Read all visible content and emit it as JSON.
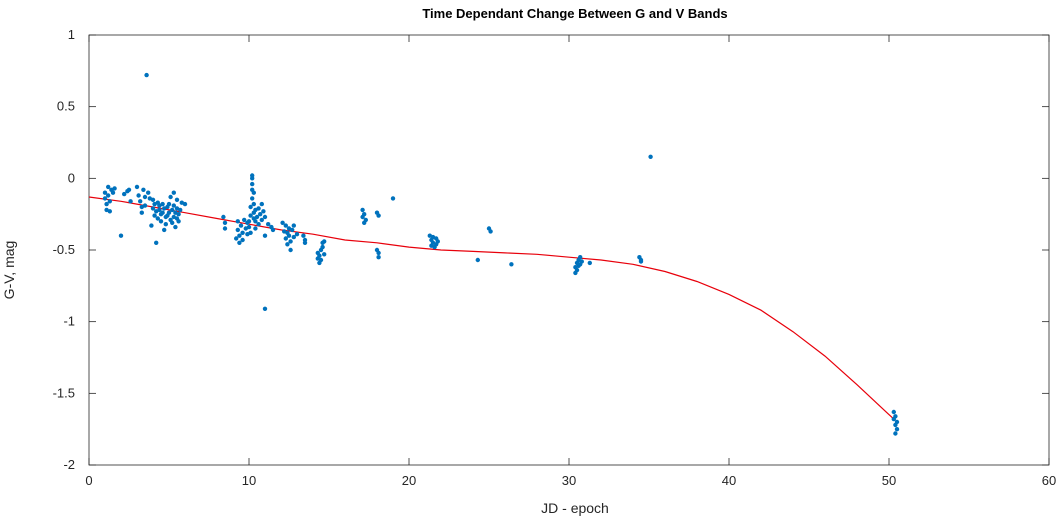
{
  "chart_data": {
    "type": "scatter",
    "title": "Time Dependant Change Between G and V Bands",
    "xlabel": "JD - epoch",
    "ylabel": "G-V, mag",
    "xlim": [
      0,
      60
    ],
    "ylim": [
      -2,
      1
    ],
    "xticks": [
      0,
      10,
      20,
      30,
      40,
      50,
      60
    ],
    "yticks": [
      -2,
      -1.5,
      -1,
      -0.5,
      0,
      0.5,
      1
    ],
    "xtick_labels": [
      "0",
      "10",
      "20",
      "30",
      "40",
      "50",
      "60"
    ],
    "ytick_labels": [
      "-2",
      "-1.5",
      "-1",
      "-0.5",
      "0",
      "0.5",
      "1"
    ],
    "grid": false,
    "colors": {
      "points": "#0072BD",
      "fit": "#E8000B",
      "axes": "#262626"
    },
    "series": [
      {
        "kind": "scatter",
        "points": [
          [
            1.0,
            -0.1
          ],
          [
            1.0,
            -0.14
          ],
          [
            1.1,
            -0.18
          ],
          [
            1.1,
            -0.22
          ],
          [
            1.2,
            -0.06
          ],
          [
            1.2,
            -0.12
          ],
          [
            1.3,
            -0.16
          ],
          [
            1.3,
            -0.23
          ],
          [
            1.4,
            -0.08
          ],
          [
            1.5,
            -0.1
          ],
          [
            1.6,
            -0.07
          ],
          [
            2.0,
            -0.4
          ],
          [
            2.2,
            -0.11
          ],
          [
            2.4,
            -0.09
          ],
          [
            2.5,
            -0.08
          ],
          [
            2.6,
            -0.16
          ],
          [
            3.0,
            -0.06
          ],
          [
            3.1,
            -0.12
          ],
          [
            3.2,
            -0.16
          ],
          [
            3.3,
            -0.2
          ],
          [
            3.3,
            -0.24
          ],
          [
            3.4,
            -0.08
          ],
          [
            3.5,
            -0.13
          ],
          [
            3.5,
            -0.19
          ],
          [
            3.6,
            0.72
          ],
          [
            3.7,
            -0.1
          ],
          [
            3.8,
            -0.14
          ],
          [
            3.9,
            -0.33
          ],
          [
            4.0,
            -0.15
          ],
          [
            4.0,
            -0.21
          ],
          [
            4.1,
            -0.26
          ],
          [
            4.1,
            -0.18
          ],
          [
            4.2,
            -0.45
          ],
          [
            4.2,
            -0.23
          ],
          [
            4.3,
            -0.17
          ],
          [
            4.3,
            -0.28
          ],
          [
            4.4,
            -0.22
          ],
          [
            4.4,
            -0.19
          ],
          [
            4.5,
            -0.25
          ],
          [
            4.5,
            -0.3
          ],
          [
            4.6,
            -0.18
          ],
          [
            4.6,
            -0.24
          ],
          [
            4.7,
            -0.21
          ],
          [
            4.7,
            -0.36
          ],
          [
            4.8,
            -0.27
          ],
          [
            4.8,
            -0.32
          ],
          [
            4.9,
            -0.2
          ],
          [
            4.9,
            -0.26
          ],
          [
            5.0,
            -0.24
          ],
          [
            5.0,
            -0.18
          ],
          [
            5.1,
            -0.29
          ],
          [
            5.1,
            -0.13
          ],
          [
            5.2,
            -0.22
          ],
          [
            5.2,
            -0.31
          ],
          [
            5.3,
            -0.1
          ],
          [
            5.3,
            -0.19
          ],
          [
            5.3,
            -0.27
          ],
          [
            5.4,
            -0.24
          ],
          [
            5.4,
            -0.34
          ],
          [
            5.5,
            -0.21
          ],
          [
            5.5,
            -0.28
          ],
          [
            5.5,
            -0.15
          ],
          [
            5.6,
            -0.25
          ],
          [
            5.6,
            -0.3
          ],
          [
            5.7,
            -0.22
          ],
          [
            5.8,
            -0.17
          ],
          [
            6.0,
            -0.18
          ],
          [
            8.4,
            -0.27
          ],
          [
            8.5,
            -0.31
          ],
          [
            8.5,
            -0.35
          ],
          [
            9.2,
            -0.42
          ],
          [
            9.3,
            -0.36
          ],
          [
            9.3,
            -0.3
          ],
          [
            9.4,
            -0.4
          ],
          [
            9.4,
            -0.45
          ],
          [
            9.5,
            -0.33
          ],
          [
            9.6,
            -0.38
          ],
          [
            9.6,
            -0.43
          ],
          [
            9.7,
            -0.29
          ],
          [
            9.8,
            -0.35
          ],
          [
            9.9,
            -0.39
          ],
          [
            9.9,
            -0.31
          ],
          [
            10.0,
            -0.3
          ],
          [
            10.0,
            -0.34
          ],
          [
            10.1,
            -0.38
          ],
          [
            10.1,
            -0.26
          ],
          [
            10.1,
            -0.2
          ],
          [
            10.2,
            -0.14
          ],
          [
            10.2,
            -0.08
          ],
          [
            10.2,
            -0.04
          ],
          [
            10.2,
            0.0
          ],
          [
            10.2,
            0.02
          ],
          [
            10.3,
            -0.1
          ],
          [
            10.3,
            -0.18
          ],
          [
            10.3,
            -0.24
          ],
          [
            10.3,
            -0.28
          ],
          [
            10.4,
            -0.22
          ],
          [
            10.4,
            -0.3
          ],
          [
            10.4,
            -0.35
          ],
          [
            10.5,
            -0.27
          ],
          [
            10.6,
            -0.21
          ],
          [
            10.6,
            -0.32
          ],
          [
            10.7,
            -0.25
          ],
          [
            10.8,
            -0.29
          ],
          [
            10.8,
            -0.18
          ],
          [
            10.9,
            -0.23
          ],
          [
            11.0,
            -0.91
          ],
          [
            11.0,
            -0.27
          ],
          [
            11.0,
            -0.4
          ],
          [
            11.2,
            -0.32
          ],
          [
            11.4,
            -0.34
          ],
          [
            11.5,
            -0.36
          ],
          [
            12.1,
            -0.31
          ],
          [
            12.2,
            -0.37
          ],
          [
            12.3,
            -0.42
          ],
          [
            12.3,
            -0.33
          ],
          [
            12.4,
            -0.46
          ],
          [
            12.4,
            -0.38
          ],
          [
            12.5,
            -0.35
          ],
          [
            12.5,
            -0.4
          ],
          [
            12.6,
            -0.5
          ],
          [
            12.6,
            -0.44
          ],
          [
            12.7,
            -0.36
          ],
          [
            12.8,
            -0.41
          ],
          [
            12.8,
            -0.33
          ],
          [
            13.0,
            -0.39
          ],
          [
            13.4,
            -0.4
          ],
          [
            13.5,
            -0.43
          ],
          [
            13.5,
            -0.45
          ],
          [
            14.3,
            -0.52
          ],
          [
            14.3,
            -0.56
          ],
          [
            14.4,
            -0.59
          ],
          [
            14.4,
            -0.54
          ],
          [
            14.5,
            -0.5
          ],
          [
            14.5,
            -0.57
          ],
          [
            14.6,
            -0.48
          ],
          [
            14.6,
            -0.45
          ],
          [
            14.7,
            -0.53
          ],
          [
            14.7,
            -0.44
          ],
          [
            17.1,
            -0.22
          ],
          [
            17.1,
            -0.27
          ],
          [
            17.2,
            -0.25
          ],
          [
            17.2,
            -0.31
          ],
          [
            17.3,
            -0.29
          ],
          [
            18.0,
            -0.24
          ],
          [
            18.0,
            -0.5
          ],
          [
            18.1,
            -0.52
          ],
          [
            18.1,
            -0.55
          ],
          [
            18.1,
            -0.26
          ],
          [
            19.0,
            -0.14
          ],
          [
            21.3,
            -0.4
          ],
          [
            21.4,
            -0.43
          ],
          [
            21.4,
            -0.47
          ],
          [
            21.5,
            -0.41
          ],
          [
            21.5,
            -0.45
          ],
          [
            21.6,
            -0.48
          ],
          [
            21.7,
            -0.42
          ],
          [
            21.7,
            -0.46
          ],
          [
            21.8,
            -0.44
          ],
          [
            24.3,
            -0.57
          ],
          [
            25.0,
            -0.35
          ],
          [
            25.1,
            -0.37
          ],
          [
            26.4,
            -0.6
          ],
          [
            30.4,
            -0.66
          ],
          [
            30.4,
            -0.62
          ],
          [
            30.5,
            -0.59
          ],
          [
            30.5,
            -0.64
          ],
          [
            30.6,
            -0.57
          ],
          [
            30.6,
            -0.61
          ],
          [
            30.7,
            -0.55
          ],
          [
            30.7,
            -0.6
          ],
          [
            30.8,
            -0.58
          ],
          [
            31.3,
            -0.59
          ],
          [
            34.4,
            -0.55
          ],
          [
            34.5,
            -0.58
          ],
          [
            34.5,
            -0.57
          ],
          [
            35.1,
            0.15
          ],
          [
            50.3,
            -1.63
          ],
          [
            50.3,
            -1.68
          ],
          [
            50.4,
            -1.72
          ],
          [
            50.4,
            -1.66
          ],
          [
            50.4,
            -1.78
          ],
          [
            50.5,
            -1.7
          ],
          [
            50.5,
            -1.75
          ]
        ]
      },
      {
        "kind": "line",
        "x": [
          0,
          2,
          4,
          6,
          8,
          10,
          12,
          14,
          16,
          18,
          20,
          22,
          24,
          26,
          28,
          30,
          32,
          34,
          36,
          38,
          40,
          42,
          44,
          46,
          48,
          50.3
        ],
        "y": [
          -0.13,
          -0.16,
          -0.2,
          -0.24,
          -0.28,
          -0.32,
          -0.36,
          -0.39,
          -0.43,
          -0.45,
          -0.48,
          -0.5,
          -0.51,
          -0.52,
          -0.53,
          -0.55,
          -0.57,
          -0.6,
          -0.65,
          -0.72,
          -0.81,
          -0.92,
          -1.07,
          -1.24,
          -1.44,
          -1.68
        ]
      }
    ]
  }
}
